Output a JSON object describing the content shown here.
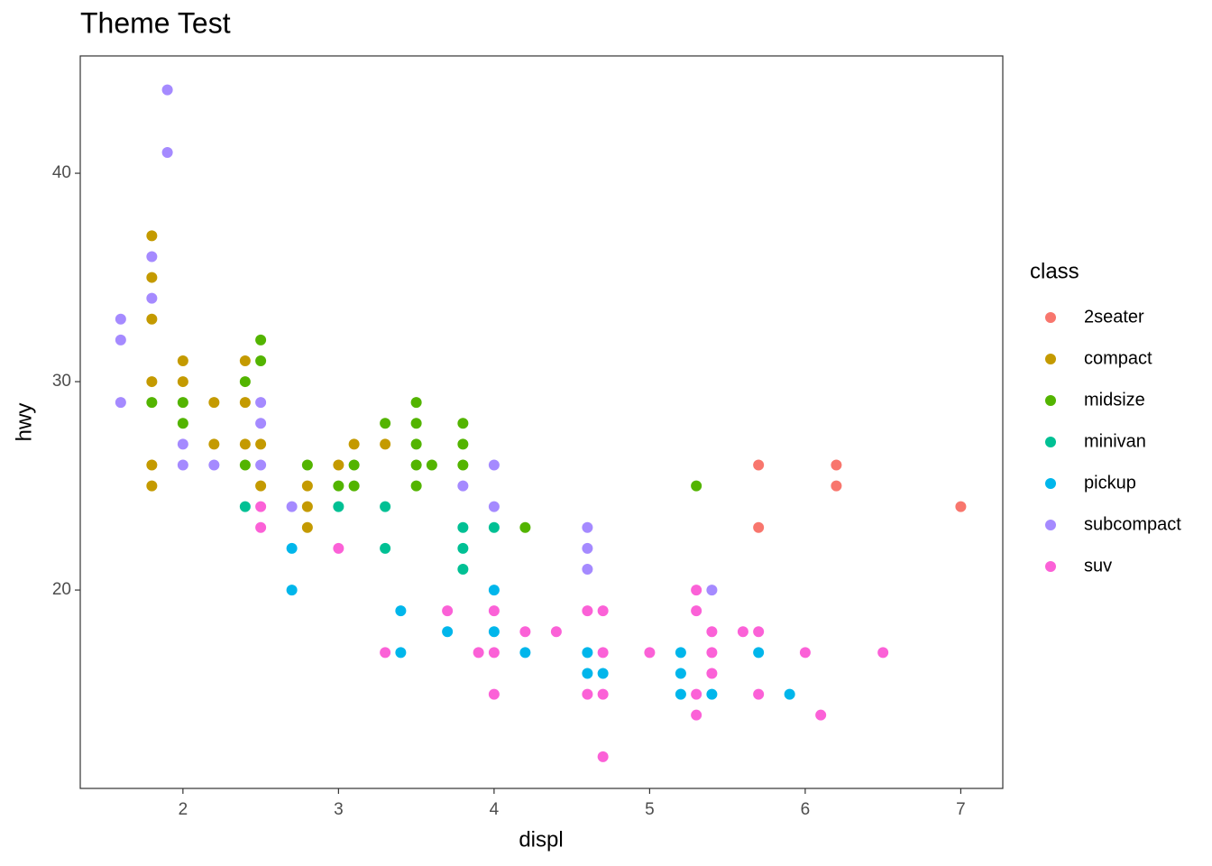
{
  "chart_data": {
    "type": "scatter",
    "title": "Theme Test",
    "x_label": "displ",
    "y_label": "hwy",
    "legend_title": "class",
    "xlim": [
      1.34,
      7.27
    ],
    "ylim": [
      10.48,
      45.63
    ],
    "xticks": [
      2,
      3,
      4,
      5,
      6,
      7
    ],
    "yticks": [
      20,
      30,
      40
    ],
    "grid": false,
    "legend_position": "right",
    "series": [
      {
        "name": "2seater",
        "color": "#F8766D",
        "x": [
          5.7,
          5.7,
          6.2,
          6.2,
          7
        ],
        "values": [
          26,
          23,
          26,
          25,
          24
        ]
      },
      {
        "name": "compact",
        "color": "#C49A00",
        "x": [
          1.8,
          1.8,
          1.8,
          1.8,
          1.8,
          1.8,
          2,
          2,
          2.2,
          2.2,
          2.4,
          2.4,
          2.4,
          2.5,
          2.5,
          2.8,
          2.8,
          2.8,
          3,
          3.1,
          3.3
        ],
        "values": [
          37,
          35,
          33,
          30,
          26,
          25,
          31,
          30,
          29,
          27,
          31,
          29,
          27,
          27,
          25,
          25,
          24,
          23,
          26,
          27,
          27
        ]
      },
      {
        "name": "midsize",
        "color": "#53B400",
        "x": [
          1.8,
          2,
          2,
          2.4,
          2.4,
          2.5,
          2.5,
          2.8,
          3,
          3.1,
          3.1,
          3.3,
          3.5,
          3.5,
          3.5,
          3.5,
          3.5,
          3.6,
          3.8,
          3.8,
          3.8,
          4.2,
          5.3
        ],
        "values": [
          29,
          29,
          28,
          30,
          26,
          32,
          31,
          26,
          25,
          26,
          25,
          28,
          29,
          28,
          27,
          26,
          25,
          26,
          28,
          27,
          26,
          23,
          25
        ]
      },
      {
        "name": "minivan",
        "color": "#00C094",
        "x": [
          2.4,
          3,
          3.3,
          3.3,
          3.8,
          3.8,
          3.8,
          4
        ],
        "values": [
          24,
          24,
          24,
          22,
          23,
          22,
          21,
          23
        ]
      },
      {
        "name": "pickup",
        "color": "#00B6EB",
        "x": [
          2.7,
          2.7,
          3.4,
          3.4,
          3.7,
          4,
          4,
          4.2,
          4.6,
          4.6,
          4.7,
          5.2,
          5.2,
          5.2,
          5.4,
          5.7,
          5.9
        ],
        "values": [
          22,
          20,
          19,
          17,
          18,
          20,
          18,
          17,
          17,
          16,
          16,
          17,
          16,
          15,
          15,
          17,
          15
        ]
      },
      {
        "name": "subcompact",
        "color": "#A58AFF",
        "x": [
          1.6,
          1.6,
          1.6,
          1.8,
          1.8,
          1.9,
          1.9,
          2,
          2,
          2.2,
          2.5,
          2.5,
          2.5,
          2.7,
          3.8,
          4,
          4,
          4.6,
          4.6,
          4.6,
          5.4
        ],
        "values": [
          33,
          32,
          29,
          36,
          34,
          44,
          41,
          27,
          26,
          26,
          29,
          28,
          26,
          24,
          25,
          26,
          24,
          23,
          22,
          21,
          20
        ]
      },
      {
        "name": "suv",
        "color": "#FB61D7",
        "x": [
          2.5,
          2.5,
          3,
          3.3,
          3.7,
          3.9,
          4,
          4,
          4,
          4.2,
          4.4,
          4.6,
          4.6,
          4.7,
          4.7,
          4.7,
          4.7,
          5,
          5.3,
          5.3,
          5.3,
          5.3,
          5.4,
          5.4,
          5.4,
          5.6,
          5.7,
          5.7,
          6,
          6.1,
          6.5
        ],
        "values": [
          24,
          23,
          22,
          17,
          19,
          17,
          19,
          17,
          15,
          18,
          18,
          19,
          15,
          19,
          17,
          15,
          12,
          17,
          20,
          19,
          15,
          14,
          18,
          17,
          16,
          18,
          18,
          15,
          17,
          14,
          17
        ]
      }
    ]
  }
}
